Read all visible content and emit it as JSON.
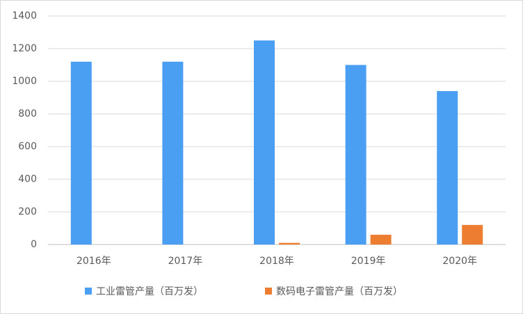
{
  "chart_data": {
    "type": "bar",
    "categories": [
      "2016年",
      "2017年",
      "2018年",
      "2019年",
      "2020年"
    ],
    "series": [
      {
        "name": "工业雷管产量（百万发）",
        "color": "#4a9ff2",
        "values": [
          1120,
          1120,
          1250,
          1100,
          940
        ]
      },
      {
        "name": "数码电子雷管产量（百万发）",
        "color": "#ed7d31",
        "values": [
          0,
          0,
          10,
          60,
          120
        ]
      }
    ],
    "ylim": [
      0,
      1400
    ],
    "yticks": [
      0,
      200,
      400,
      600,
      800,
      1000,
      1200,
      1400
    ],
    "grid": true,
    "legend": "bottom"
  }
}
